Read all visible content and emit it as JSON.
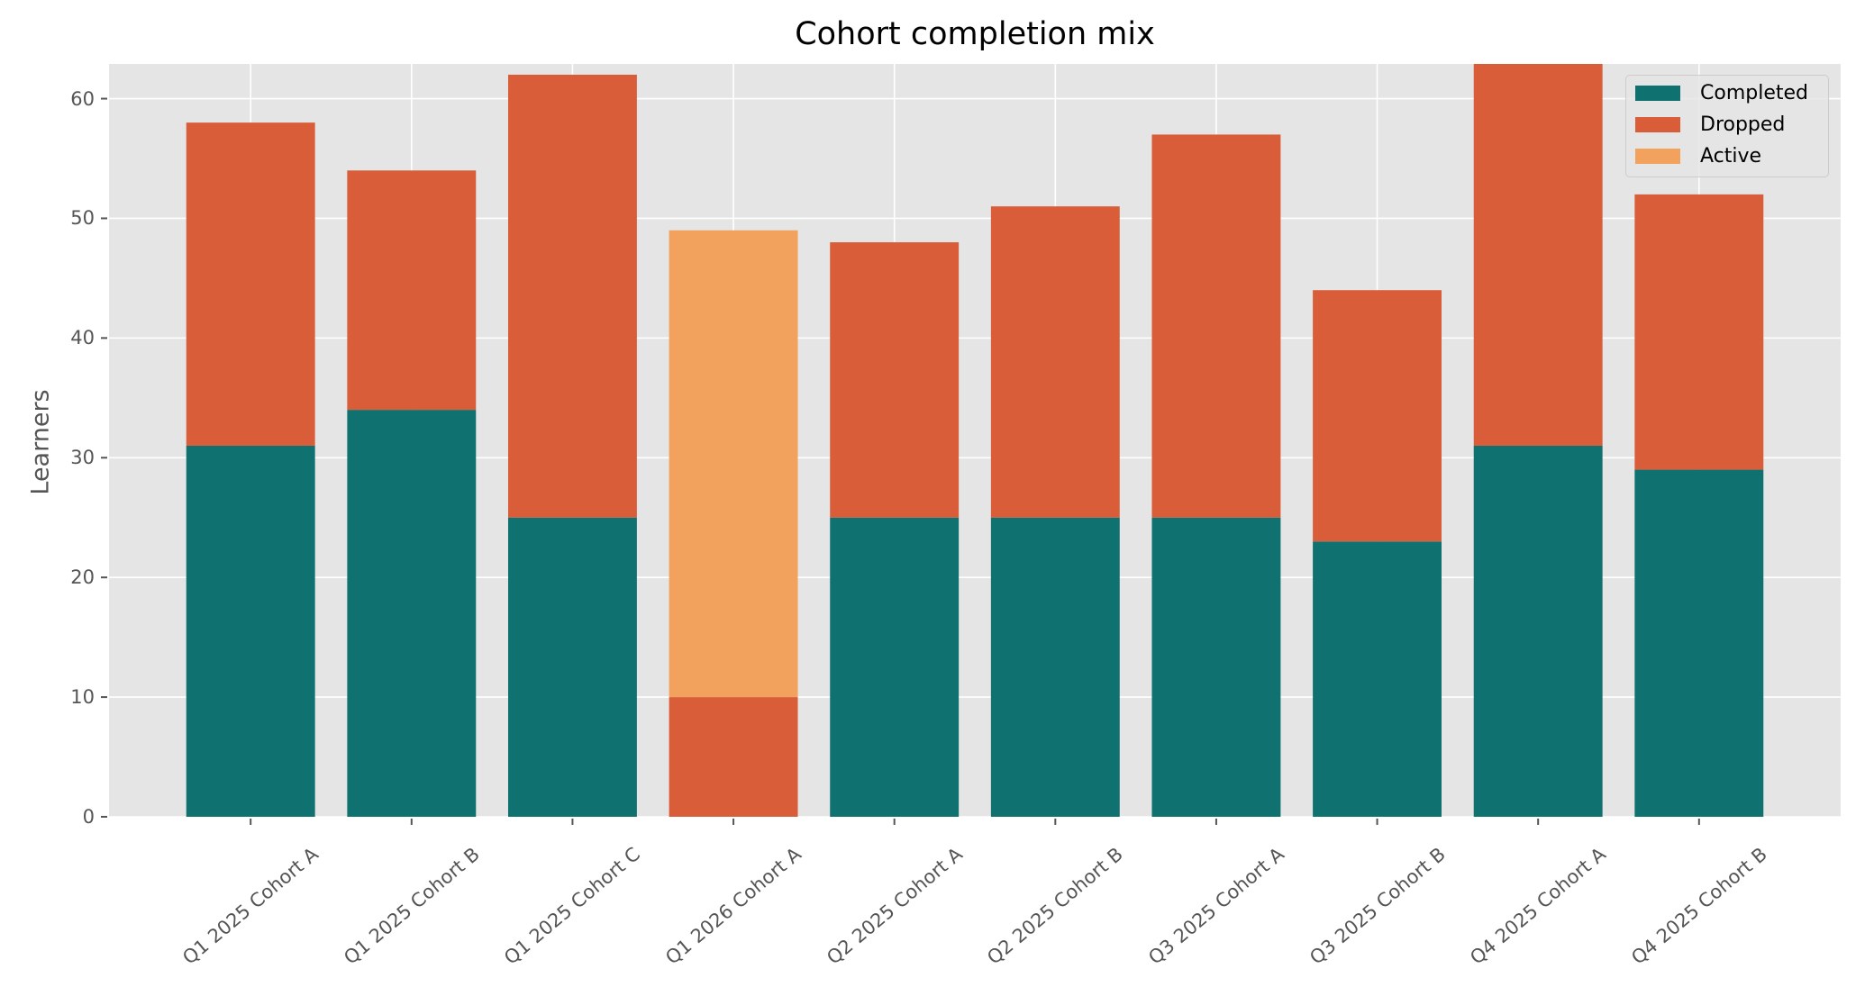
{
  "chart_data": {
    "type": "bar",
    "stacked": true,
    "title": "Cohort completion mix",
    "xlabel": "",
    "ylabel": "Learners",
    "ylim": [
      0,
      62.9
    ],
    "yticks": [
      0,
      10,
      20,
      30,
      40,
      50,
      60
    ],
    "grid": true,
    "legend_position": "upper right",
    "categories": [
      "Q1 2025 Cohort A",
      "Q1 2025 Cohort B",
      "Q1 2025 Cohort C",
      "Q1 2026 Cohort A",
      "Q2 2025 Cohort A",
      "Q2 2025 Cohort B",
      "Q3 2025 Cohort A",
      "Q3 2025 Cohort B",
      "Q4 2025 Cohort A",
      "Q4 2025 Cohort B"
    ],
    "series": [
      {
        "name": "Completed",
        "color": "#107171",
        "values": [
          31,
          34,
          25,
          0,
          25,
          25,
          25,
          23,
          31,
          29
        ]
      },
      {
        "name": "Dropped",
        "color": "#d95d39",
        "values": [
          27,
          20,
          37,
          10,
          23,
          26,
          32,
          21,
          32,
          23
        ]
      },
      {
        "name": "Active",
        "color": "#f2a25d",
        "values": [
          0,
          0,
          0,
          39,
          0,
          0,
          0,
          0,
          0,
          0
        ]
      }
    ],
    "totals": [
      58,
      54,
      62,
      49,
      48,
      51,
      57,
      44,
      63,
      52
    ],
    "annotations": [
      "Q4 2025 Cohort A bar is clipped at the top of the axis"
    ]
  },
  "style": {
    "plot_background": "#e5e5e5",
    "grid_color": "#ffffff",
    "tick_color": "#555555"
  }
}
